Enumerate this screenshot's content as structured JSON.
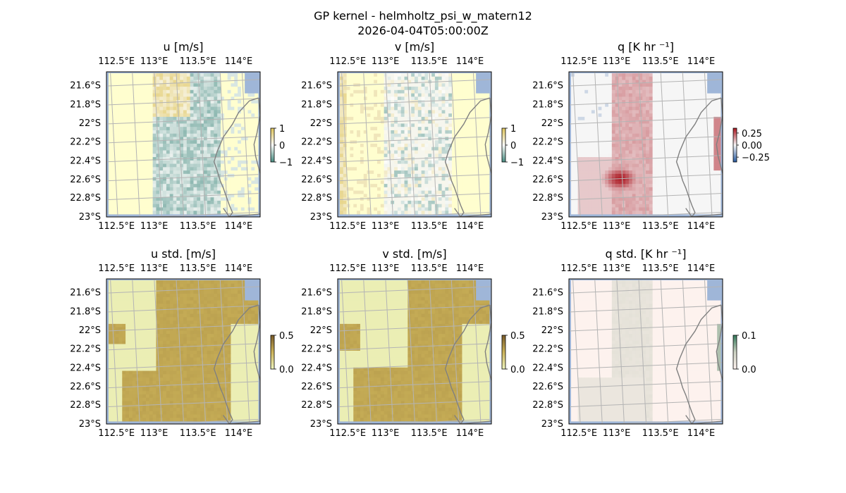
{
  "figure": {
    "title_line1": "GP kernel - helmholtz_psi_w_matern12",
    "title_line2": "2026-04-04T05:00:00Z"
  },
  "colors": {
    "ocean": "#9fb6d8",
    "grid": "#b4b4b4",
    "coast": "#808080",
    "frame": "#000000"
  },
  "chart_data": [
    {
      "type": "heatmap",
      "title": "u [m/s]",
      "field": "u",
      "lon_ticks": [
        "112.5°E",
        "113°E",
        "113.5°E",
        "114°E"
      ],
      "lat_ticks": [
        "21.6°S",
        "21.8°S",
        "22°S",
        "22.2°S",
        "22.4°S",
        "22.6°S",
        "22.8°S",
        "23°S"
      ],
      "lon_range": [
        112.45,
        114.2
      ],
      "lat_range": [
        -23.0,
        -21.47
      ],
      "colorbar": {
        "range": [
          -1,
          1
        ],
        "ticks": [
          "1",
          "0",
          "−1"
        ],
        "tick_values": [
          1,
          0,
          -1
        ],
        "cmap": "diverging yellow-white-teal"
      }
    },
    {
      "type": "heatmap",
      "title": "v [m/s]",
      "field": "v",
      "lon_ticks": [
        "112.5°E",
        "113°E",
        "113.5°E",
        "114°E"
      ],
      "lat_ticks": [
        "21.6°S",
        "21.8°S",
        "22°S",
        "22.2°S",
        "22.4°S",
        "22.6°S",
        "22.8°S",
        "23°S"
      ],
      "lon_range": [
        112.45,
        114.2
      ],
      "lat_range": [
        -23.0,
        -21.47
      ],
      "colorbar": {
        "range": [
          -1,
          1
        ],
        "ticks": [
          "1",
          "0",
          "−1"
        ],
        "tick_values": [
          1,
          0,
          -1
        ],
        "cmap": "diverging yellow-white-teal"
      }
    },
    {
      "type": "heatmap",
      "title": "q [K hr ⁻¹]",
      "field": "q",
      "lon_ticks": [
        "112.5°E",
        "113°E",
        "113.5°E",
        "114°E"
      ],
      "lat_ticks": [
        "21.6°S",
        "21.8°S",
        "22°S",
        "22.2°S",
        "22.4°S",
        "22.6°S",
        "22.8°S",
        "23°S"
      ],
      "lon_range": [
        112.45,
        114.2
      ],
      "lat_range": [
        -23.0,
        -21.47
      ],
      "colorbar": {
        "range": [
          -0.35,
          0.35
        ],
        "ticks": [
          "0.25",
          "0.00",
          "−0.25"
        ],
        "tick_values": [
          0.25,
          0,
          -0.25
        ],
        "cmap": "diverging red-white-blue"
      }
    },
    {
      "type": "heatmap",
      "title": "u std. [m/s]",
      "field": "ustd",
      "lon_ticks": [
        "112.5°E",
        "113°E",
        "113.5°E",
        "114°E"
      ],
      "lat_ticks": [
        "21.6°S",
        "21.8°S",
        "22°S",
        "22.2°S",
        "22.4°S",
        "22.6°S",
        "22.8°S",
        "23°S"
      ],
      "lon_range": [
        112.45,
        114.2
      ],
      "lat_range": [
        -23.0,
        -21.47
      ],
      "colorbar": {
        "range": [
          0,
          0.5
        ],
        "ticks": [
          "0.5",
          "0.0"
        ],
        "tick_values": [
          0.5,
          0
        ],
        "cmap": "sequential yellow-brown"
      }
    },
    {
      "type": "heatmap",
      "title": "v std. [m/s]",
      "field": "vstd",
      "lon_ticks": [
        "112.5°E",
        "113°E",
        "113.5°E",
        "114°E"
      ],
      "lat_ticks": [
        "21.6°S",
        "21.8°S",
        "22°S",
        "22.2°S",
        "22.4°S",
        "22.6°S",
        "22.8°S",
        "23°S"
      ],
      "lon_range": [
        112.45,
        114.2
      ],
      "lat_range": [
        -23.0,
        -21.47
      ],
      "colorbar": {
        "range": [
          0,
          0.5
        ],
        "ticks": [
          "0.5",
          "0.0"
        ],
        "tick_values": [
          0.5,
          0
        ],
        "cmap": "sequential yellow-brown"
      }
    },
    {
      "type": "heatmap",
      "title": "q std. [K hr ⁻¹]",
      "field": "qstd",
      "lon_ticks": [
        "112.5°E",
        "113°E",
        "113.5°E",
        "114°E"
      ],
      "lat_ticks": [
        "21.6°S",
        "21.8°S",
        "22°S",
        "22.2°S",
        "22.4°S",
        "22.6°S",
        "22.8°S",
        "23°S"
      ],
      "lon_range": [
        112.45,
        114.2
      ],
      "lat_range": [
        -23.0,
        -21.47
      ],
      "colorbar": {
        "range": [
          0,
          0.1
        ],
        "ticks": [
          "0.1",
          "0.0"
        ],
        "tick_values": [
          0.1,
          0
        ],
        "cmap": "sequential pink-grey-green"
      }
    }
  ]
}
